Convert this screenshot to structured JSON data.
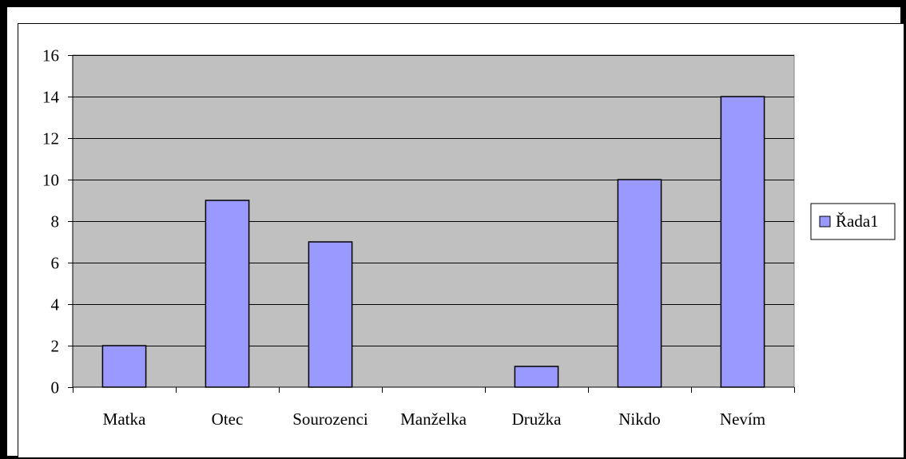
{
  "chart_data": {
    "type": "bar",
    "title": "",
    "xlabel": "",
    "ylabel": "",
    "categories": [
      "Matka",
      "Otec",
      "Sourozenci",
      "Manželka",
      "Družka",
      "Nikdo",
      "Nevím"
    ],
    "series": [
      {
        "name": "Řada1",
        "values": [
          2,
          9,
          7,
          0,
          1,
          10,
          14
        ],
        "color": "#9999ff"
      }
    ],
    "ylim": [
      0,
      16
    ],
    "yticks": [
      0,
      2,
      4,
      6,
      8,
      10,
      12,
      14,
      16
    ],
    "ytick_labels": [
      "0",
      "2",
      "4",
      "6",
      "8",
      "10",
      "12",
      "14",
      "16"
    ],
    "grid": true,
    "plot_background": "#c0c0c0",
    "legend_position": "right"
  }
}
